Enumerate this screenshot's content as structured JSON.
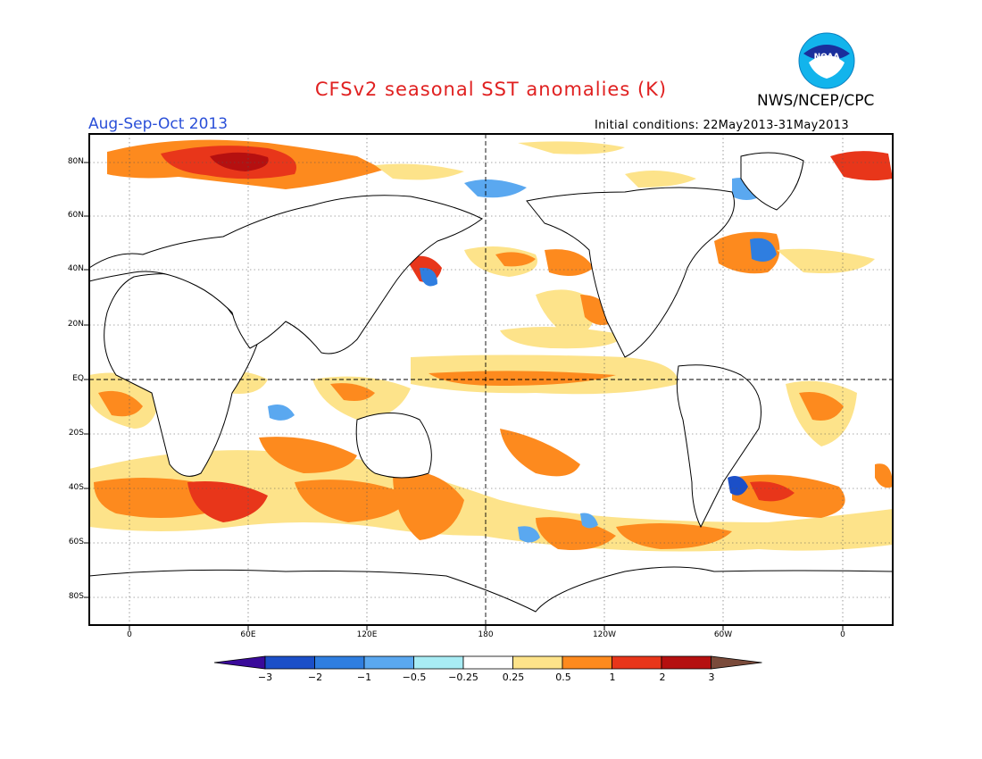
{
  "header": {
    "title": "CFSv2 seasonal SST anomalies (K)",
    "agency": "NWS/NCEP/CPC",
    "season": "Aug-Sep-Oct 2013",
    "initial_conditions": "Initial conditions: 22May2013-31May2013",
    "logo_text": "NOAA"
  },
  "map": {
    "lat_labels": [
      "80N",
      "60N",
      "40N",
      "20N",
      "EQ",
      "20S",
      "40S",
      "60S",
      "80S"
    ],
    "lon_labels": [
      "0",
      "60E",
      "120E",
      "180",
      "120W",
      "60W",
      "0"
    ]
  },
  "colorbar": {
    "labels": [
      "−3",
      "−2",
      "−1",
      "−0.5",
      "−0.25",
      "0.25",
      "0.5",
      "1",
      "2",
      "3"
    ],
    "colors": [
      "#3a0a9a",
      "#1b4fc8",
      "#2f7ee0",
      "#5aa8f0",
      "#a8ecf4",
      "#ffffff",
      "#fde38a",
      "#fd8a1e",
      "#e8361a",
      "#b51010",
      "#7a4a3a"
    ]
  }
}
